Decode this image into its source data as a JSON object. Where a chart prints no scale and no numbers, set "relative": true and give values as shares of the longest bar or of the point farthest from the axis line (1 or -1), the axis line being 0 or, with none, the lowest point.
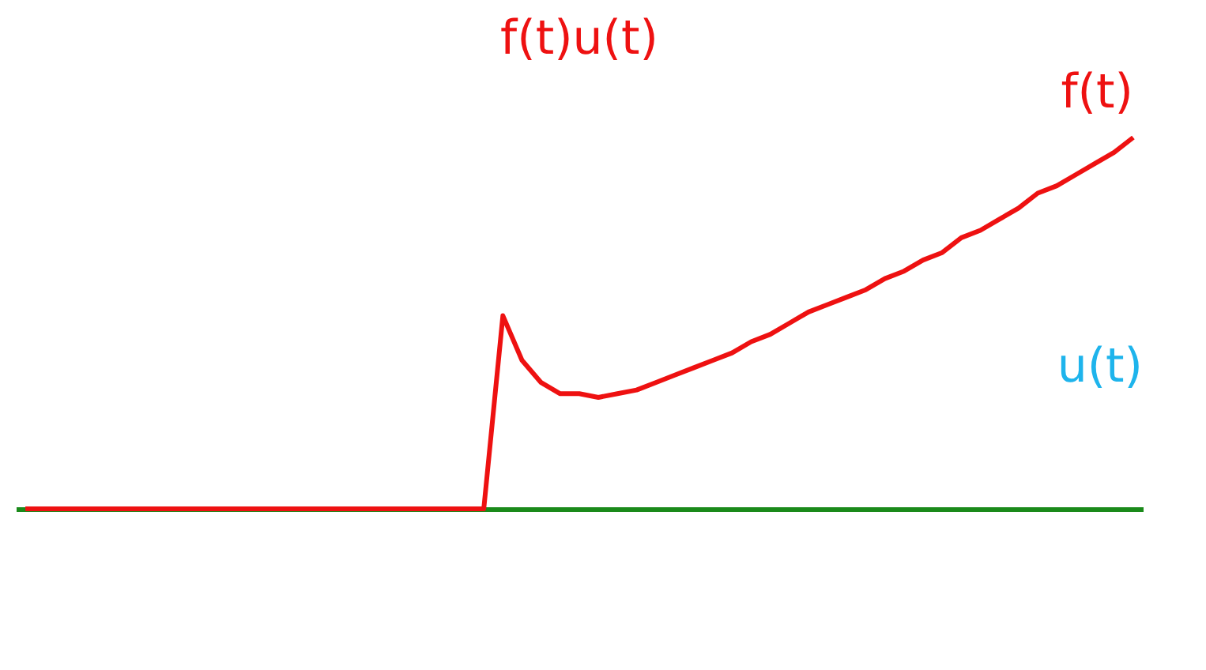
{
  "chart_data": {
    "type": "line",
    "title": "f(t)u(t)",
    "relative": true,
    "categories": [
      null,
      null,
      null,
      null,
      null,
      null,
      null,
      null,
      null,
      null,
      null,
      null,
      null,
      null,
      null,
      null,
      null,
      null,
      null,
      null,
      null,
      null,
      null,
      null,
      null,
      null,
      null,
      null,
      null,
      null,
      null,
      null,
      null,
      null,
      null,
      null,
      null,
      null,
      null,
      null,
      null,
      null,
      null,
      null,
      null,
      null,
      null,
      null,
      null,
      null,
      null,
      null,
      null,
      null,
      null,
      null,
      null,
      null,
      null
    ],
    "series": [
      {
        "name": "f(t)",
        "color": "#ee1111",
        "values": [
          0,
          0,
          0,
          0,
          0,
          0,
          0,
          0,
          0,
          0,
          0,
          0,
          0,
          0,
          0,
          0,
          0,
          0,
          0,
          0,
          0,
          0,
          0,
          0,
          0,
          0.52,
          0.4,
          0.34,
          0.31,
          0.31,
          0.3,
          0.31,
          0.32,
          0.34,
          0.36,
          0.38,
          0.4,
          0.42,
          0.45,
          0.47,
          0.5,
          0.53,
          0.55,
          0.57,
          0.59,
          0.62,
          0.64,
          0.67,
          0.69,
          0.73,
          0.75,
          0.78,
          0.81,
          0.85,
          0.87,
          0.9,
          0.93,
          0.96,
          1
        ]
      }
    ],
    "annotations": [
      "u(t)"
    ]
  }
}
